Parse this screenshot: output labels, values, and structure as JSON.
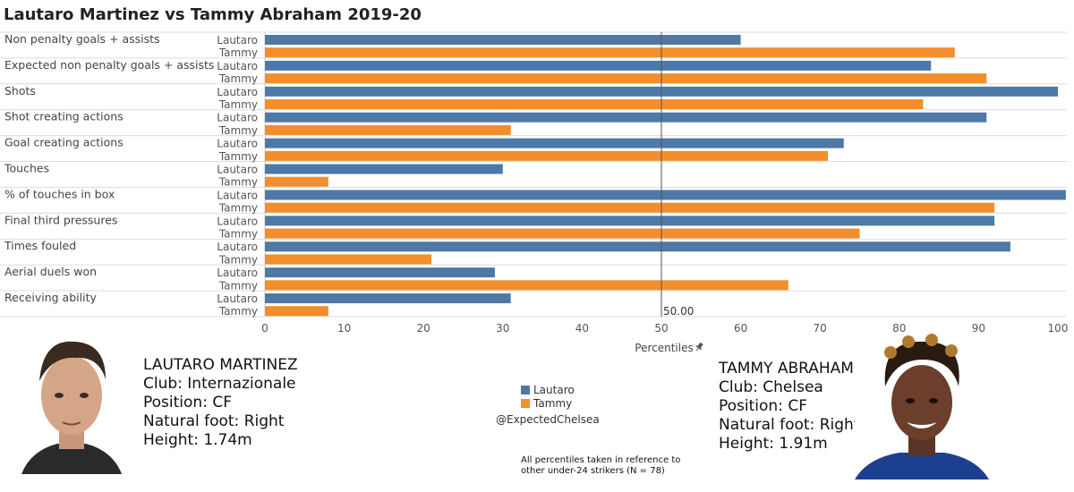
{
  "title": "Lautaro Martinez vs Tammy Abraham 2019-20",
  "colors": {
    "lautaro": "#4e79a7",
    "tammy": "#f28e2b"
  },
  "chart_data": {
    "type": "bar",
    "orientation": "horizontal",
    "categories": [
      "Non penalty goals + assists",
      "Expected non penalty goals + assists",
      "Shots",
      "Shot creating actions",
      "Goal creating actions",
      "Touches",
      "% of touches in box",
      "Final third pressures",
      "Times fouled",
      "Aerial duels won",
      "Receiving ability"
    ],
    "series": [
      {
        "name": "Lautaro",
        "values": [
          60,
          84,
          100,
          91,
          73,
          30,
          101,
          92,
          94,
          29,
          31
        ]
      },
      {
        "name": "Tammy",
        "values": [
          87,
          91,
          83,
          31,
          71,
          8,
          92,
          75,
          21,
          66,
          8
        ]
      }
    ],
    "xlabel": "Percentiles",
    "xlim": [
      0,
      100
    ],
    "xticks": [
      "0",
      "10",
      "20",
      "30",
      "40",
      "50",
      "60",
      "70",
      "80",
      "90",
      "100"
    ],
    "reference_line": {
      "value": 50,
      "label": "50.00"
    },
    "legend_position": "bottom-center"
  },
  "players": {
    "left": {
      "name": "LAUTARO MARTINEZ",
      "club": "Club: Internazionale",
      "position": "Position: CF",
      "foot": "Natural foot: Right",
      "height": "Height: 1.74m"
    },
    "right": {
      "name": "TAMMY ABRAHAM",
      "club": "Club: Chelsea",
      "position": "Position: CF",
      "foot": "Natural foot: Right",
      "height": "Height: 1.91m"
    }
  },
  "legend": {
    "lautaro": "Lautaro",
    "tammy": "Tammy"
  },
  "handle": "@ExpectedChelsea",
  "note": "All percentiles taken in reference to other under-24 strikers (N = 78)",
  "axis_pin_icon": "pin-icon"
}
